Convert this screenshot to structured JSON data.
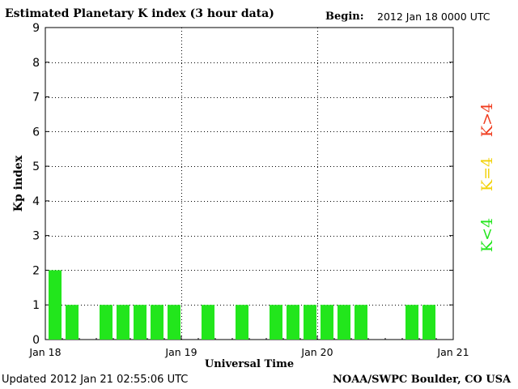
{
  "header": {
    "title": "Estimated Planetary K index (3 hour data)",
    "begin_label": "Begin:",
    "begin_value": "2012 Jan 18 0000 UTC"
  },
  "footer": {
    "updated_label": "Updated",
    "updated_value": "2012 Jan 21 02:55:06 UTC",
    "source": "NOAA/SWPC Boulder, CO USA"
  },
  "legend": {
    "items": [
      {
        "label": "K<4",
        "color": "#22e61c"
      },
      {
        "label": "K=4",
        "color": "#f2d20a"
      },
      {
        "label": "K>4",
        "color": "#f03c1e"
      }
    ]
  },
  "chart_data": {
    "type": "bar",
    "title": "Estimated Planetary K index (3 hour data)",
    "xlabel": "Universal Time",
    "ylabel": "Kp index",
    "ylim": [
      0,
      9
    ],
    "yticks": [
      0,
      1,
      2,
      3,
      4,
      5,
      6,
      7,
      8,
      9
    ],
    "xticks": [
      "Jan 18",
      "Jan 19",
      "Jan 20",
      "Jan 21"
    ],
    "interval_hours": 3,
    "x_start": "2012-01-18T00:00Z",
    "x_end": "2012-01-21T00:00Z",
    "grid": true,
    "bar_color": "#22e61c",
    "series": [
      {
        "x": [
          "2012-01-18T00:00Z",
          "2012-01-18T03:00Z",
          "2012-01-18T06:00Z",
          "2012-01-18T09:00Z",
          "2012-01-18T12:00Z",
          "2012-01-18T15:00Z",
          "2012-01-18T18:00Z",
          "2012-01-18T21:00Z",
          "2012-01-19T00:00Z",
          "2012-01-19T03:00Z",
          "2012-01-19T06:00Z",
          "2012-01-19T09:00Z",
          "2012-01-19T12:00Z",
          "2012-01-19T15:00Z",
          "2012-01-19T18:00Z",
          "2012-01-19T21:00Z",
          "2012-01-20T00:00Z",
          "2012-01-20T03:00Z",
          "2012-01-20T06:00Z",
          "2012-01-20T09:00Z",
          "2012-01-20T12:00Z",
          "2012-01-20T15:00Z",
          "2012-01-20T18:00Z",
          "2012-01-20T21:00Z"
        ],
        "values": [
          2,
          1,
          0,
          1,
          1,
          1,
          1,
          1,
          0,
          1,
          0,
          1,
          0,
          1,
          1,
          1,
          1,
          1,
          1,
          0,
          0,
          1,
          1,
          0
        ]
      }
    ]
  }
}
